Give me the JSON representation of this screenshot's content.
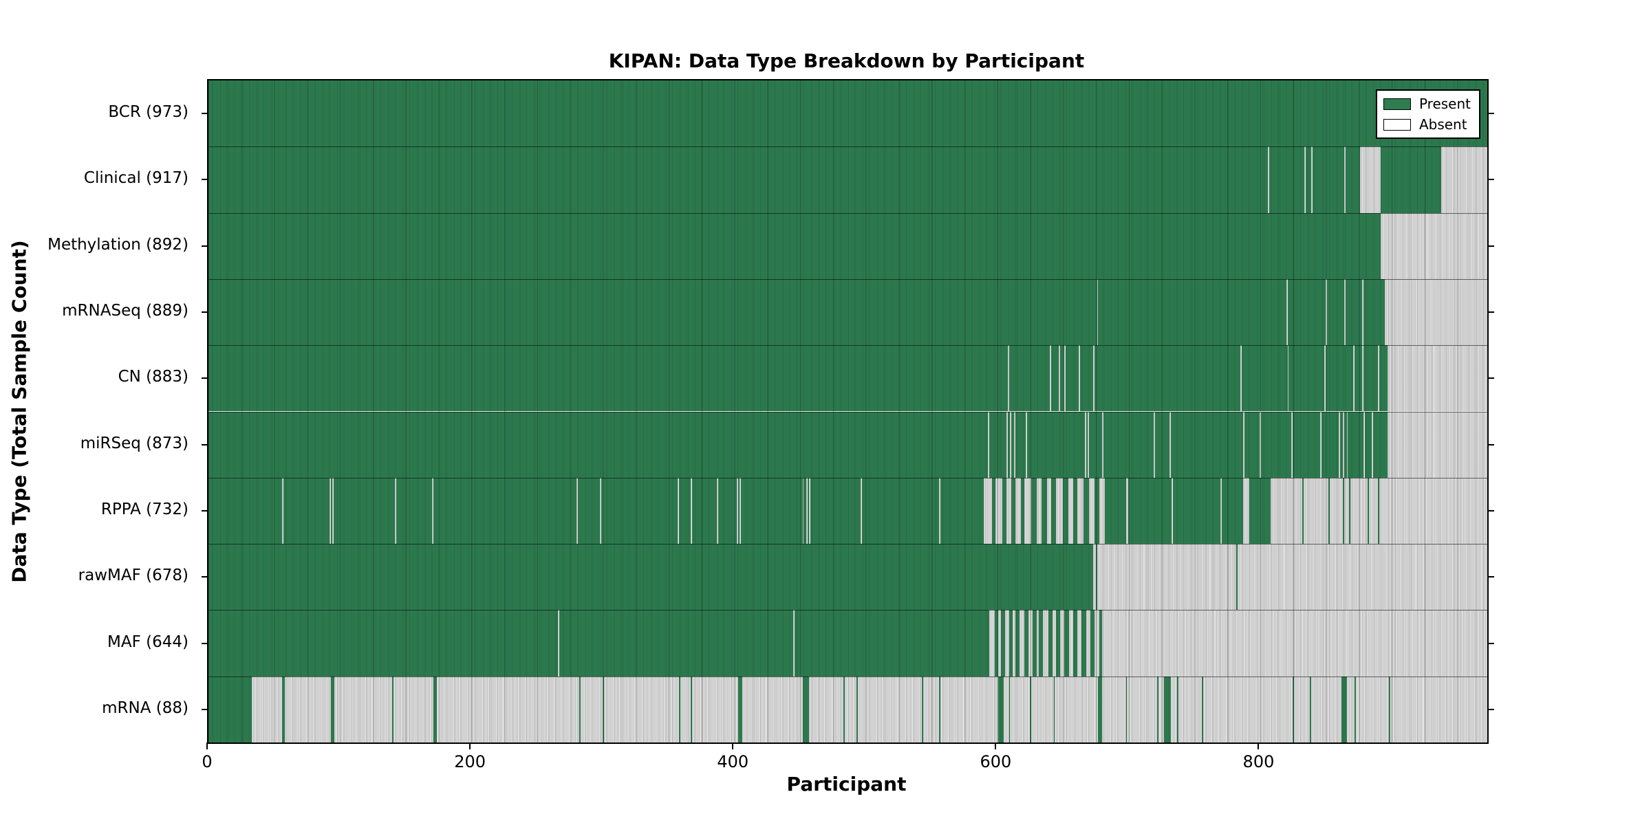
{
  "chart_data": {
    "type": "heatmap",
    "title": "KIPAN: Data Type Breakdown by Participant",
    "xlabel": "Participant",
    "ylabel": "Data Type (Total Sample Count)",
    "x_max": 973,
    "x_ticks": [
      0,
      200,
      400,
      600,
      800
    ],
    "x_tick_labels": [
      "0",
      "200",
      "400",
      "600",
      "800"
    ],
    "grid": "fine vertical participant gridlines",
    "colors": {
      "present": "#2e7d51",
      "absent_fill": "#cccccc",
      "legend_absent": "#ffffff",
      "background": "#ffffff"
    },
    "legend": {
      "position": "upper right",
      "entries": [
        {
          "label": "Present",
          "color": "#2e7d51"
        },
        {
          "label": "Absent",
          "color": "#ffffff"
        }
      ]
    },
    "rows": [
      {
        "data_type": "BCR",
        "label": "BCR (973)",
        "count": 973,
        "base": "present",
        "ranges": []
      },
      {
        "data_type": "Clinical",
        "label": "Clinical (917)",
        "count": 917,
        "base": "present",
        "ranges": [
          [
            806,
            807
          ],
          [
            834,
            835
          ],
          [
            839,
            840
          ],
          [
            864,
            865
          ],
          [
            876,
            892
          ],
          [
            938,
            973
          ]
        ]
      },
      {
        "data_type": "Methylation",
        "label": "Methylation (892)",
        "count": 892,
        "base": "present",
        "ranges": [
          [
            892,
            973
          ]
        ]
      },
      {
        "data_type": "mRNASeq",
        "label": "mRNASeq (889)",
        "count": 889,
        "base": "present",
        "ranges": [
          [
            676,
            677
          ],
          [
            820,
            821
          ],
          [
            850,
            851
          ],
          [
            864,
            865
          ],
          [
            878,
            879
          ],
          [
            895,
            973
          ]
        ]
      },
      {
        "data_type": "CN",
        "label": "CN (883)",
        "count": 883,
        "base": "present",
        "ranges": [
          [
            608,
            609
          ],
          [
            640,
            641
          ],
          [
            647,
            648
          ],
          [
            651,
            652
          ],
          [
            662,
            663
          ],
          [
            673,
            674
          ],
          [
            785,
            786
          ],
          [
            821,
            822
          ],
          [
            849,
            850
          ],
          [
            871,
            872
          ],
          [
            878,
            879
          ],
          [
            890,
            891
          ],
          [
            897,
            973
          ]
        ]
      },
      {
        "data_type": "miRSeq",
        "label": "miRSeq (873)",
        "count": 873,
        "base": "present",
        "ranges": [
          [
            593,
            594
          ],
          [
            607,
            608
          ],
          [
            610,
            611
          ],
          [
            613,
            614
          ],
          [
            622,
            623
          ],
          [
            667,
            668
          ],
          [
            669,
            670
          ],
          [
            680,
            681
          ],
          [
            719,
            720
          ],
          [
            731,
            732
          ],
          [
            787,
            788
          ],
          [
            800,
            801
          ],
          [
            824,
            825
          ],
          [
            846,
            847
          ],
          [
            860,
            861
          ],
          [
            863,
            864
          ],
          [
            866,
            867
          ],
          [
            879,
            880
          ],
          [
            885,
            886
          ],
          [
            897,
            973
          ]
        ]
      },
      {
        "data_type": "RPPA",
        "label": "RPPA (732)",
        "count": 732,
        "base": "present",
        "ranges": [
          [
            56,
            57
          ],
          [
            92,
            93
          ],
          [
            94,
            95
          ],
          [
            142,
            143
          ],
          [
            170,
            171
          ],
          [
            280,
            281
          ],
          [
            298,
            299
          ],
          [
            357,
            358
          ],
          [
            367,
            368
          ],
          [
            387,
            388
          ],
          [
            402,
            403
          ],
          [
            404,
            405
          ],
          [
            452,
            453
          ],
          [
            455,
            456
          ],
          [
            457,
            458
          ],
          [
            496,
            497
          ],
          [
            556,
            557
          ],
          [
            590,
            596
          ],
          [
            599,
            604
          ],
          [
            607,
            611
          ],
          [
            614,
            618
          ],
          [
            621,
            626
          ],
          [
            630,
            634
          ],
          [
            638,
            641
          ],
          [
            645,
            650
          ],
          [
            654,
            658
          ],
          [
            661,
            666
          ],
          [
            670,
            674
          ],
          [
            678,
            682
          ],
          [
            698,
            700
          ],
          [
            733,
            734
          ],
          [
            770,
            771
          ],
          [
            787,
            792
          ],
          [
            808,
            832
          ],
          [
            833,
            852
          ],
          [
            853,
            863
          ],
          [
            864,
            868
          ],
          [
            869,
            882
          ],
          [
            883,
            890
          ],
          [
            891,
            973
          ]
        ]
      },
      {
        "data_type": "rawMAF",
        "label": "rawMAF (678)",
        "count": 678,
        "base": "present",
        "ranges": [
          [
            673,
            675
          ],
          [
            676,
            782
          ],
          [
            783,
            973
          ]
        ]
      },
      {
        "data_type": "MAF",
        "label": "MAF (644)",
        "count": 644,
        "base": "present",
        "ranges": [
          [
            266,
            267
          ],
          [
            445,
            446
          ],
          [
            594,
            598
          ],
          [
            601,
            603
          ],
          [
            606,
            609
          ],
          [
            612,
            614
          ],
          [
            617,
            621
          ],
          [
            624,
            627
          ],
          [
            630,
            632
          ],
          [
            635,
            639
          ],
          [
            642,
            645
          ],
          [
            648,
            651
          ],
          [
            655,
            658
          ],
          [
            661,
            664
          ],
          [
            668,
            671
          ],
          [
            674,
            678
          ],
          [
            680,
            973
          ]
        ]
      },
      {
        "data_type": "mRNA",
        "label": "mRNA (88)",
        "count": 88,
        "base": "absent",
        "ranges": [
          [
            0,
            33
          ],
          [
            56,
            58
          ],
          [
            93,
            96
          ],
          [
            140,
            141
          ],
          [
            171,
            174
          ],
          [
            282,
            283
          ],
          [
            300,
            301
          ],
          [
            358,
            359
          ],
          [
            367,
            368
          ],
          [
            403,
            406
          ],
          [
            452,
            457
          ],
          [
            483,
            484
          ],
          [
            493,
            494
          ],
          [
            543,
            544
          ],
          [
            556,
            557
          ],
          [
            601,
            605
          ],
          [
            609,
            610
          ],
          [
            625,
            626
          ],
          [
            643,
            644
          ],
          [
            677,
            680
          ],
          [
            698,
            699
          ],
          [
            722,
            723
          ],
          [
            727,
            732
          ],
          [
            737,
            738
          ],
          [
            756,
            757
          ],
          [
            825,
            826
          ],
          [
            838,
            839
          ],
          [
            862,
            866
          ],
          [
            872,
            873
          ],
          [
            898,
            899
          ]
        ]
      }
    ]
  }
}
